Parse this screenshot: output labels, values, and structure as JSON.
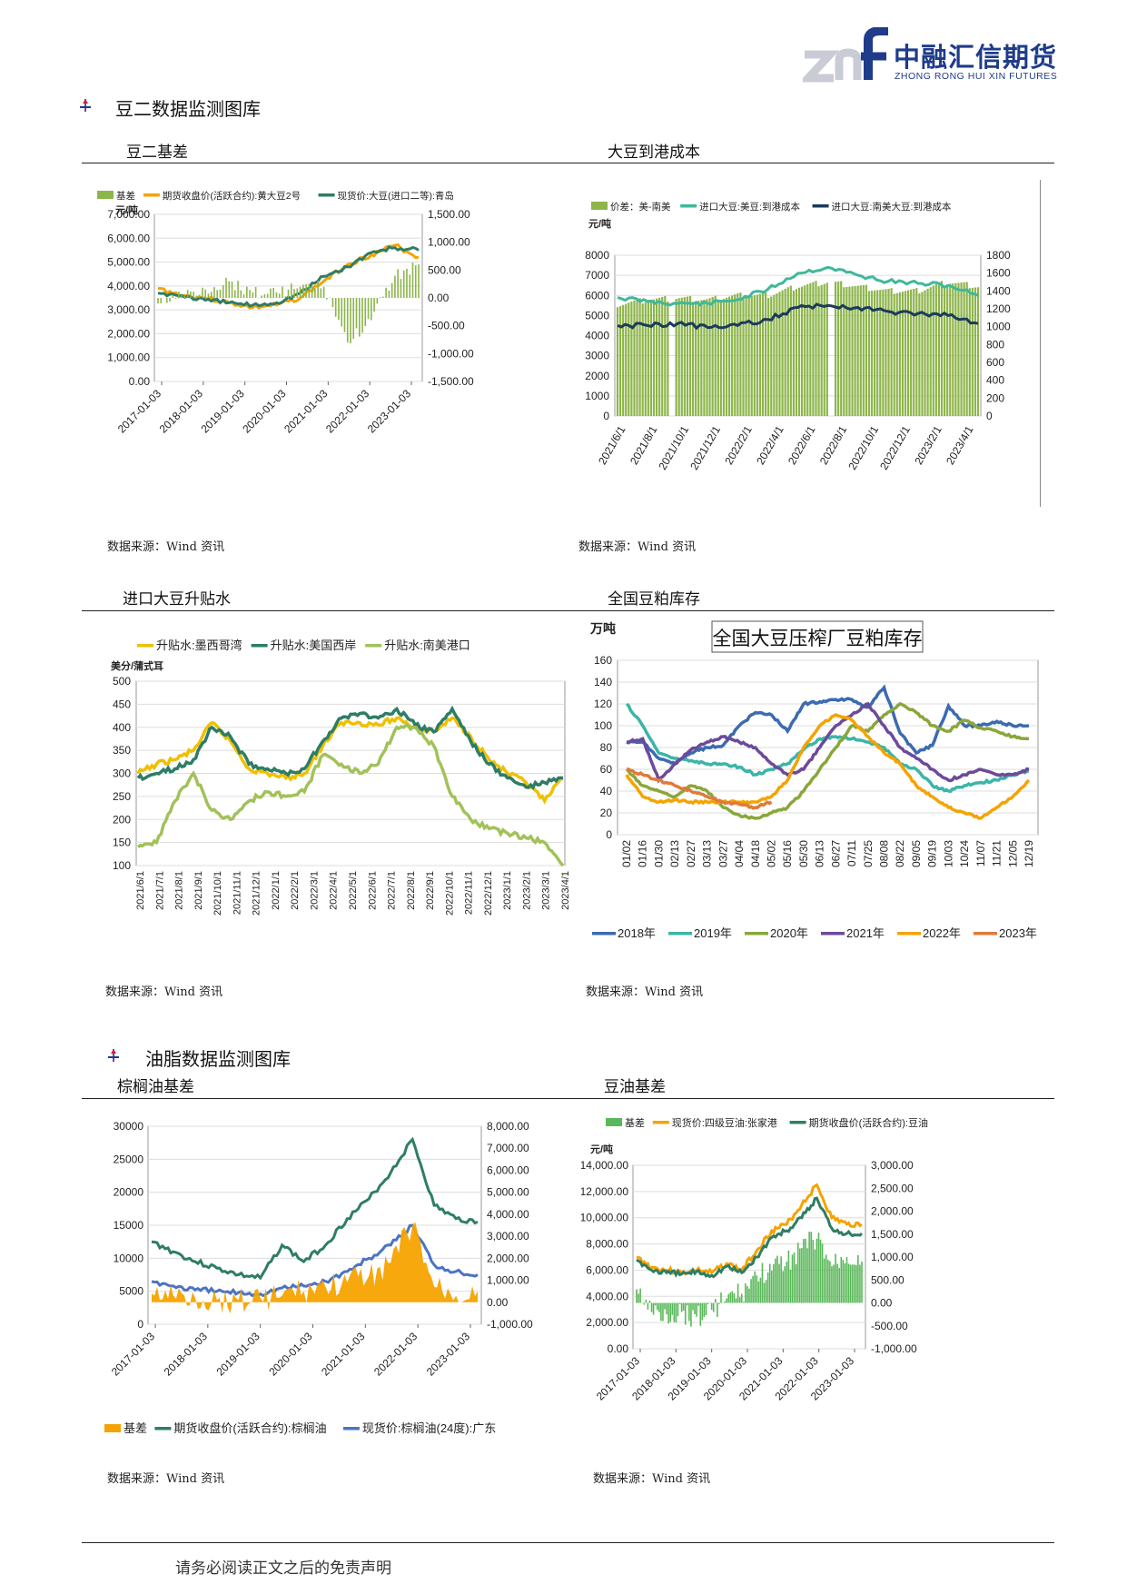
{
  "header": {
    "logo_mark": "znf",
    "company_cn": "中融汇信期货",
    "company_en": "ZHONG RONG HUI XIN FUTURES"
  },
  "sections": {
    "soy2_title": "豆二数据监测图库",
    "oil_title": "油脂数据监测图库"
  },
  "chart_titles": {
    "c1": "豆二基差",
    "c2": "大豆到港成本",
    "c3": "进口大豆升贴水",
    "c4": "全国豆粕库存",
    "c5": "棕榈油基差",
    "c6": "豆油基差"
  },
  "sources": {
    "s1": "数据来源：Wind 资讯",
    "s2": "数据来源：Wind 资讯",
    "s3": "数据来源：Wind 资讯",
    "s4": "数据来源：Wind 资讯",
    "s5": "数据来源：Wind 资讯",
    "s6": "数据来源：Wind 资讯"
  },
  "footer": {
    "disclaimer": "请务必阅读正文之后的免责声明"
  },
  "chart_data": [
    {
      "id": "soy2-basis",
      "type": "line",
      "unit": "元/吨",
      "legend": [
        "基差",
        "期货收盘价(活跃合约):黄大豆2号",
        "现货价:大豆(进口二等):青岛"
      ],
      "colors": [
        "#8db54a",
        "#f5a300",
        "#2e7d66"
      ],
      "y_left_ticks": [
        "7,000.00",
        "6,000.00",
        "5,000.00",
        "4,000.00",
        "3,000.00",
        "2,000.00",
        "1,000.00",
        "0.00"
      ],
      "y_right_ticks": [
        "1,500.00",
        "1,000.00",
        "500.00",
        "0.00",
        "-500.00",
        "-1,000.00",
        "-1,500.00"
      ],
      "x_ticks": [
        "2017-01-03",
        "2018-01-03",
        "2019-01-03",
        "2020-01-03",
        "2021-01-03",
        "2022-01-03",
        "2023-01-03"
      ],
      "ylim_left": [
        0,
        7000
      ],
      "ylim_right": [
        -1500,
        1500
      ],
      "series": [
        {
          "name": "期货收盘价(活跃合约):黄大豆2号",
          "values": [
            3900,
            3600,
            3500,
            3300,
            3100,
            3200,
            3500,
            4200,
            4900,
            5300,
            5700,
            5200
          ]
        },
        {
          "name": "现货价:大豆(进口二等):青岛",
          "values": [
            3700,
            3600,
            3400,
            3300,
            3200,
            3300,
            3700,
            4400,
            4800,
            5400,
            5600,
            5500
          ]
        },
        {
          "name": "基差",
          "values": [
            -100,
            50,
            150,
            300,
            100,
            100,
            200,
            200,
            -800,
            -400,
            400,
            600
          ]
        }
      ]
    },
    {
      "id": "soy-landed-cost",
      "type": "line",
      "unit": "元/吨",
      "legend": [
        "价差：美-南美",
        "进口大豆:美豆:到港成本",
        "进口大豆:南美大豆:到港成本"
      ],
      "colors": [
        "#8db54a",
        "#3fb89a",
        "#1c3a5a"
      ],
      "y_left_ticks": [
        "8000",
        "7000",
        "6000",
        "5000",
        "4000",
        "3000",
        "2000",
        "1000",
        "0"
      ],
      "y_right_ticks": [
        "1800",
        "1600",
        "1400",
        "1200",
        "1000",
        "800",
        "600",
        "400",
        "200",
        "0"
      ],
      "x_ticks": [
        "2021/6/1",
        "2021/8/1",
        "2021/10/1",
        "2021/12/1",
        "2022/2/1",
        "2022/4/1",
        "2022/6/1",
        "2022/8/1",
        "2022/10/1",
        "2022/12/1",
        "2023/2/1",
        "2023/4/1"
      ],
      "ylim_left": [
        0,
        8000
      ],
      "ylim_right": [
        0,
        1800
      ],
      "series": [
        {
          "name": "进口大豆:美豆:到港成本",
          "values": [
            5900,
            5700,
            5600,
            5600,
            5800,
            6300,
            7100,
            7400,
            7000,
            6700,
            6600,
            6500,
            6000
          ]
        },
        {
          "name": "进口大豆:南美大豆:到港成本",
          "values": [
            4500,
            4500,
            4600,
            4400,
            4500,
            4800,
            5400,
            5500,
            5400,
            5200,
            5100,
            5000,
            4600
          ]
        },
        {
          "name": "价差：美-南美",
          "values": [
            1250,
            1300,
            1320,
            1300,
            1350,
            1350,
            1450,
            1500,
            1450,
            1400,
            1400,
            1500,
            1450
          ]
        }
      ]
    },
    {
      "id": "import-soy-premium",
      "type": "line",
      "unit": "美分/蒲式耳",
      "legend": [
        "升贴水:墨西哥湾",
        "升贴水:美国西岸",
        "升贴水:南美港口"
      ],
      "colors": [
        "#f0c000",
        "#2e7d66",
        "#a2c15a"
      ],
      "y_ticks": [
        "500",
        "450",
        "400",
        "350",
        "300",
        "250",
        "200",
        "150",
        "100"
      ],
      "x_ticks": [
        "2021/6/1",
        "2021/7/1",
        "2021/8/1",
        "2021/9/1",
        "2021/10/1",
        "2021/11/1",
        "2021/12/1",
        "2022/1/1",
        "2022/2/1",
        "2022/3/1",
        "2022/4/1",
        "2022/5/1",
        "2022/6/1",
        "2022/7/1",
        "2022/8/1",
        "2022/9/1",
        "2022/10/1",
        "2022/11/1",
        "2022/12/1",
        "2023/1/1",
        "2023/2/1",
        "2023/3/1",
        "2023/4/1"
      ],
      "ylim": [
        100,
        500
      ],
      "series": [
        {
          "name": "升贴水:墨西哥湾",
          "values": [
            300,
            320,
            330,
            350,
            410,
            370,
            310,
            300,
            290,
            300,
            360,
            410,
            410,
            405,
            420,
            400,
            390,
            420,
            380,
            330,
            300,
            280,
            240,
            290
          ]
        },
        {
          "name": "升贴水:美国西岸",
          "values": [
            290,
            300,
            310,
            330,
            400,
            380,
            320,
            310,
            300,
            310,
            370,
            420,
            430,
            420,
            440,
            405,
            390,
            440,
            370,
            320,
            290,
            270,
            280,
            290
          ]
        },
        {
          "name": "升贴水:南美港口",
          "values": [
            140,
            150,
            240,
            300,
            220,
            200,
            240,
            260,
            250,
            260,
            340,
            320,
            300,
            320,
            400,
            400,
            360,
            250,
            200,
            180,
            170,
            160,
            150,
            100
          ]
        }
      ]
    },
    {
      "id": "soymeal-inventory",
      "type": "line",
      "title": "全国大豆压榨厂豆粕库存",
      "unit": "万吨",
      "legend": [
        "2018年",
        "2019年",
        "2020年",
        "2021年",
        "2022年",
        "2023年"
      ],
      "colors": [
        "#3b6bb0",
        "#3bb5a8",
        "#8aa63b",
        "#6c4a9a",
        "#f5a300",
        "#e07a3a"
      ],
      "y_ticks": [
        "160",
        "140",
        "120",
        "100",
        "80",
        "60",
        "40",
        "20",
        "0"
      ],
      "x_ticks": [
        "01/02",
        "01/16",
        "01/30",
        "02/13",
        "02/27",
        "03/13",
        "03/27",
        "04/04",
        "04/18",
        "05/02",
        "05/16",
        "05/30",
        "06/13",
        "06/27",
        "07/11",
        "07/25",
        "08/08",
        "08/22",
        "09/05",
        "09/19",
        "10/03",
        "10/24",
        "11/07",
        "11/21",
        "12/05",
        "12/19"
      ],
      "ylim": [
        0,
        160
      ],
      "series": [
        {
          "name": "2018年",
          "values": [
            85,
            85,
            70,
            65,
            75,
            80,
            82,
            100,
            112,
            110,
            95,
            120,
            122,
            124,
            124,
            117,
            135,
            93,
            75,
            82,
            118,
            100,
            100,
            104,
            100,
            100
          ]
        },
        {
          "name": "2019年",
          "values": [
            120,
            100,
            75,
            70,
            68,
            65,
            65,
            62,
            55,
            60,
            65,
            78,
            88,
            90,
            88,
            85,
            80,
            65,
            60,
            45,
            40,
            45,
            48,
            50,
            55,
            58
          ]
        },
        {
          "name": "2020年",
          "values": [
            60,
            45,
            40,
            35,
            45,
            40,
            25,
            18,
            15,
            20,
            25,
            40,
            60,
            80,
            100,
            95,
            110,
            120,
            112,
            100,
            95,
            105,
            98,
            95,
            90,
            88
          ]
        },
        {
          "name": "2021年",
          "values": [
            85,
            88,
            50,
            65,
            78,
            85,
            90,
            85,
            80,
            65,
            55,
            60,
            80,
            100,
            110,
            120,
            100,
            80,
            70,
            60,
            50,
            55,
            60,
            55,
            55,
            60
          ]
        },
        {
          "name": "2022年",
          "values": [
            55,
            35,
            30,
            32,
            30,
            30,
            30,
            30,
            30,
            35,
            50,
            80,
            100,
            110,
            105,
            90,
            75,
            65,
            45,
            35,
            25,
            20,
            15,
            25,
            35,
            50
          ]
        },
        {
          "name": "2023年",
          "values": [
            60,
            55,
            50,
            45,
            40,
            35,
            30,
            28,
            25,
            30
          ]
        }
      ]
    },
    {
      "id": "palm-oil-basis",
      "type": "line",
      "legend": [
        "基差",
        "期货收盘价(活跃合约):棕榈油",
        "现货价:棕榈油(24度):广东"
      ],
      "colors": [
        "#f5a300",
        "#2e7d66",
        "#4a73c4"
      ],
      "y_left_ticks": [
        "30000",
        "25000",
        "20000",
        "15000",
        "10000",
        "5000",
        "0"
      ],
      "y_right_ticks": [
        "8,000.00",
        "7,000.00",
        "6,000.00",
        "5,000.00",
        "4,000.00",
        "3,000.00",
        "2,000.00",
        "1,000.00",
        "0.00",
        "-1,000.00"
      ],
      "x_ticks": [
        "2017-01-03",
        "2018-01-03",
        "2019-01-03",
        "2020-01-03",
        "2021-01-03",
        "2022-01-03",
        "2023-01-03"
      ],
      "ylim_left": [
        0,
        30000
      ],
      "ylim_right": [
        -1000,
        8000
      ],
      "series": [
        {
          "name": "期货收盘价(活跃合约):棕榈油",
          "values": [
            12500,
            11000,
            9500,
            8500,
            7500,
            7000,
            12000,
            9500,
            12000,
            16000,
            19000,
            23000,
            28000,
            18000,
            16000,
            15500
          ]
        },
        {
          "name": "现货价:棕榈油(24度):广东",
          "values": [
            6500,
            5800,
            5200,
            5000,
            4800,
            4600,
            5500,
            5800,
            6500,
            8000,
            10000,
            12000,
            15000,
            9000,
            8000,
            7500
          ]
        },
        {
          "name": "基差",
          "values": [
            400,
            300,
            200,
            100,
            100,
            200,
            300,
            500,
            700,
            900,
            1200,
            1800,
            3500,
            700,
            300,
            500
          ]
        }
      ]
    },
    {
      "id": "soy-oil-basis",
      "type": "line",
      "unit": "元/吨",
      "legend": [
        "基差",
        "现货价:四级豆油:张家港",
        "期货收盘价(活跃合约):豆油"
      ],
      "colors": [
        "#5ab85a",
        "#f5a300",
        "#2e7d66"
      ],
      "y_left_ticks": [
        "14,000.00",
        "12,000.00",
        "10,000.00",
        "8,000.00",
        "6,000.00",
        "4,000.00",
        "2,000.00",
        "0.00"
      ],
      "y_right_ticks": [
        "3,000.00",
        "2,500.00",
        "2,000.00",
        "1,500.00",
        "1,000.00",
        "500.00",
        "0.00",
        "-500.00",
        "-1,000.00"
      ],
      "x_ticks": [
        "2017-01-03",
        "2018-01-03",
        "2019-01-03",
        "2020-01-03",
        "2021-01-03",
        "2022-01-03",
        "2023-01-03"
      ],
      "ylim_left": [
        0,
        14000
      ],
      "ylim_right": [
        -1000,
        3000
      ],
      "series": [
        {
          "name": "现货价:四级豆油:张家港",
          "values": [
            7000,
            6200,
            6000,
            5800,
            6000,
            5800,
            6500,
            6000,
            7500,
            9000,
            9500,
            11000,
            12500,
            10000,
            9500,
            9500
          ]
        },
        {
          "name": "期货收盘价(活跃合约):豆油",
          "values": [
            6800,
            6000,
            5800,
            5700,
            5900,
            5600,
            6300,
            5800,
            7000,
            8500,
            9000,
            10000,
            11500,
            9200,
            8800,
            8800
          ]
        },
        {
          "name": "基差",
          "values": [
            300,
            -200,
            -250,
            -200,
            -300,
            -150,
            100,
            200,
            600,
            700,
            900,
            1200,
            1400,
            800,
            1000,
            900
          ]
        }
      ]
    }
  ]
}
